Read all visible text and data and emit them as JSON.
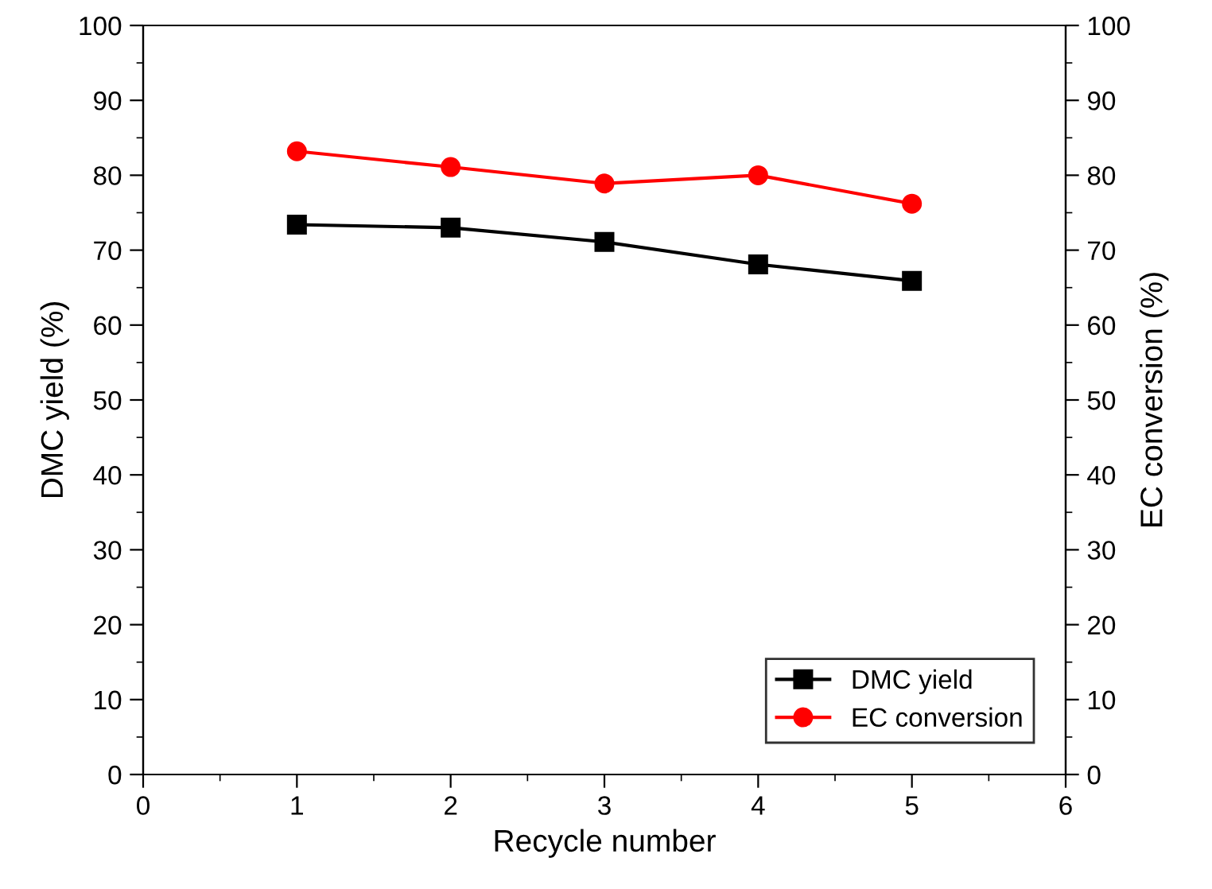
{
  "chart_data": {
    "type": "line",
    "xlabel": "Recycle number",
    "ylabel": "DMC yield (%)",
    "y2label": "EC conversion (%)",
    "x": [
      1,
      2,
      3,
      4,
      5
    ],
    "series": [
      {
        "name": "DMC yield",
        "color": "#000000",
        "marker": "square",
        "values": [
          73.4,
          73.0,
          71.1,
          68.1,
          65.9
        ]
      },
      {
        "name": "EC conversion",
        "color": "#ff0000",
        "marker": "circle",
        "values": [
          83.2,
          81.1,
          78.9,
          80.0,
          76.2
        ]
      }
    ],
    "xlim": [
      0,
      6
    ],
    "xticks": [
      0,
      1,
      2,
      3,
      4,
      5,
      6
    ],
    "ylim": [
      0,
      100
    ],
    "yticks": [
      0,
      10,
      20,
      30,
      40,
      50,
      60,
      70,
      80,
      90,
      100
    ],
    "y2lim": [
      0,
      100
    ],
    "y2ticks": [
      0,
      10,
      20,
      30,
      40,
      50,
      60,
      70,
      80,
      90,
      100
    ],
    "legend": "bottom right",
    "line_style": "solid",
    "grid": false
  }
}
